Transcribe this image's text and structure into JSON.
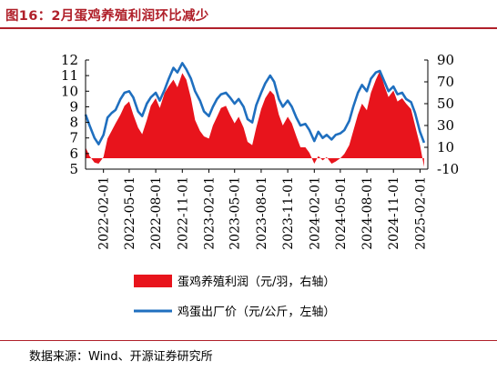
{
  "figure": {
    "title": "图16：2月蛋鸡养殖利润环比减少",
    "source": "数据来源：Wind、开源证券研究所"
  },
  "colors": {
    "title": "#b0202a",
    "profit_fill": "#e8141c",
    "price_line": "#1f6fbf"
  },
  "chart_data": {
    "type": "line",
    "x_type": "date",
    "x_range": [
      "2021-12-01",
      "2025-02-28"
    ],
    "x_ticks": [
      "2022-02-01",
      "2022-05-01",
      "2022-08-01",
      "2022-11-01",
      "2023-02-01",
      "2023-05-01",
      "2023-08-01",
      "2023-11-01",
      "2024-02-01",
      "2024-05-01",
      "2024-08-01",
      "2024-11-01",
      "2025-02-01"
    ],
    "left_axis": {
      "range": [
        5,
        12
      ],
      "ticks": [
        5,
        6,
        7,
        8,
        9,
        10,
        11,
        12
      ]
    },
    "right_axis": {
      "range": [
        -10,
        90
      ],
      "ticks": [
        -10,
        10,
        30,
        50,
        70,
        90
      ]
    },
    "grid": false,
    "legend_position": "bottom",
    "series": [
      {
        "name": "蛋鸡养殖利润（元/羽，右轴）",
        "type": "area",
        "axis": "right",
        "points": [
          [
            "2021-12-01",
            10
          ],
          [
            "2021-12-15",
            2
          ],
          [
            "2022-01-01",
            -4
          ],
          [
            "2022-01-15",
            -5
          ],
          [
            "2022-02-01",
            1
          ],
          [
            "2022-02-15",
            18
          ],
          [
            "2022-03-01",
            25
          ],
          [
            "2022-03-15",
            32
          ],
          [
            "2022-04-01",
            40
          ],
          [
            "2022-04-15",
            48
          ],
          [
            "2022-05-01",
            52
          ],
          [
            "2022-05-15",
            40
          ],
          [
            "2022-06-01",
            28
          ],
          [
            "2022-06-15",
            22
          ],
          [
            "2022-07-01",
            35
          ],
          [
            "2022-07-15",
            48
          ],
          [
            "2022-08-01",
            55
          ],
          [
            "2022-08-15",
            46
          ],
          [
            "2022-09-01",
            60
          ],
          [
            "2022-09-15",
            66
          ],
          [
            "2022-10-01",
            72
          ],
          [
            "2022-10-15",
            65
          ],
          [
            "2022-11-01",
            78
          ],
          [
            "2022-11-15",
            72
          ],
          [
            "2022-12-01",
            55
          ],
          [
            "2022-12-15",
            35
          ],
          [
            "2023-01-01",
            25
          ],
          [
            "2023-01-15",
            20
          ],
          [
            "2023-02-01",
            18
          ],
          [
            "2023-02-15",
            30
          ],
          [
            "2023-03-01",
            38
          ],
          [
            "2023-03-15",
            46
          ],
          [
            "2023-04-01",
            48
          ],
          [
            "2023-04-15",
            40
          ],
          [
            "2023-05-01",
            32
          ],
          [
            "2023-05-15",
            38
          ],
          [
            "2023-06-01",
            28
          ],
          [
            "2023-06-15",
            15
          ],
          [
            "2023-07-01",
            12
          ],
          [
            "2023-07-15",
            28
          ],
          [
            "2023-08-01",
            45
          ],
          [
            "2023-08-15",
            55
          ],
          [
            "2023-09-01",
            62
          ],
          [
            "2023-09-15",
            58
          ],
          [
            "2023-10-01",
            40
          ],
          [
            "2023-10-15",
            30
          ],
          [
            "2023-11-01",
            38
          ],
          [
            "2023-11-15",
            32
          ],
          [
            "2023-12-01",
            20
          ],
          [
            "2023-12-15",
            10
          ],
          [
            "2024-01-01",
            10
          ],
          [
            "2024-01-15",
            5
          ],
          [
            "2024-02-01",
            -5
          ],
          [
            "2024-02-15",
            2
          ],
          [
            "2024-03-01",
            -2
          ],
          [
            "2024-03-15",
            1
          ],
          [
            "2024-04-01",
            -5
          ],
          [
            "2024-04-15",
            -3
          ],
          [
            "2024-05-01",
            0
          ],
          [
            "2024-05-15",
            4
          ],
          [
            "2024-06-01",
            12
          ],
          [
            "2024-06-15",
            25
          ],
          [
            "2024-07-01",
            40
          ],
          [
            "2024-07-15",
            50
          ],
          [
            "2024-08-01",
            44
          ],
          [
            "2024-08-15",
            60
          ],
          [
            "2024-09-01",
            72
          ],
          [
            "2024-09-15",
            80
          ],
          [
            "2024-10-01",
            66
          ],
          [
            "2024-10-15",
            56
          ],
          [
            "2024-11-01",
            62
          ],
          [
            "2024-11-15",
            52
          ],
          [
            "2024-12-01",
            55
          ],
          [
            "2024-12-15",
            50
          ],
          [
            "2025-01-01",
            45
          ],
          [
            "2025-01-15",
            30
          ],
          [
            "2025-02-01",
            12
          ],
          [
            "2025-02-15",
            -8
          ]
        ]
      },
      {
        "name": "鸡蛋出厂价（元/公斤，左轴）",
        "type": "line",
        "axis": "left",
        "points": [
          [
            "2021-12-01",
            8.5
          ],
          [
            "2021-12-15",
            7.8
          ],
          [
            "2022-01-01",
            7.0
          ],
          [
            "2022-01-15",
            6.6
          ],
          [
            "2022-02-01",
            7.2
          ],
          [
            "2022-02-15",
            8.3
          ],
          [
            "2022-03-01",
            8.6
          ],
          [
            "2022-03-15",
            8.8
          ],
          [
            "2022-04-01",
            9.5
          ],
          [
            "2022-04-15",
            9.9
          ],
          [
            "2022-05-01",
            10.0
          ],
          [
            "2022-05-15",
            9.6
          ],
          [
            "2022-06-01",
            8.7
          ],
          [
            "2022-06-15",
            8.4
          ],
          [
            "2022-07-01",
            9.2
          ],
          [
            "2022-07-15",
            9.6
          ],
          [
            "2022-08-01",
            9.9
          ],
          [
            "2022-08-15",
            9.4
          ],
          [
            "2022-09-01",
            10.1
          ],
          [
            "2022-09-15",
            10.8
          ],
          [
            "2022-10-01",
            11.5
          ],
          [
            "2022-10-15",
            11.2
          ],
          [
            "2022-11-01",
            11.8
          ],
          [
            "2022-11-15",
            11.4
          ],
          [
            "2022-12-01",
            10.8
          ],
          [
            "2022-12-15",
            10.0
          ],
          [
            "2023-01-01",
            9.4
          ],
          [
            "2023-01-15",
            8.7
          ],
          [
            "2023-02-01",
            8.4
          ],
          [
            "2023-02-15",
            9.0
          ],
          [
            "2023-03-01",
            9.5
          ],
          [
            "2023-03-15",
            9.8
          ],
          [
            "2023-04-01",
            9.9
          ],
          [
            "2023-04-15",
            9.6
          ],
          [
            "2023-05-01",
            9.2
          ],
          [
            "2023-05-15",
            9.5
          ],
          [
            "2023-06-01",
            9.0
          ],
          [
            "2023-06-15",
            8.2
          ],
          [
            "2023-07-01",
            8.0
          ],
          [
            "2023-07-15",
            9.1
          ],
          [
            "2023-08-01",
            9.9
          ],
          [
            "2023-08-15",
            10.5
          ],
          [
            "2023-09-01",
            11.0
          ],
          [
            "2023-09-15",
            10.6
          ],
          [
            "2023-10-01",
            9.5
          ],
          [
            "2023-10-15",
            9.0
          ],
          [
            "2023-11-01",
            9.4
          ],
          [
            "2023-11-15",
            9.0
          ],
          [
            "2023-12-01",
            8.3
          ],
          [
            "2023-12-15",
            7.8
          ],
          [
            "2024-01-01",
            7.9
          ],
          [
            "2024-01-15",
            7.5
          ],
          [
            "2024-02-01",
            6.8
          ],
          [
            "2024-02-15",
            7.4
          ],
          [
            "2024-03-01",
            7.0
          ],
          [
            "2024-03-15",
            7.2
          ],
          [
            "2024-04-01",
            6.9
          ],
          [
            "2024-04-15",
            7.2
          ],
          [
            "2024-05-01",
            7.3
          ],
          [
            "2024-05-15",
            7.5
          ],
          [
            "2024-06-01",
            8.1
          ],
          [
            "2024-06-15",
            9.0
          ],
          [
            "2024-07-01",
            9.9
          ],
          [
            "2024-07-15",
            10.4
          ],
          [
            "2024-08-01",
            10.0
          ],
          [
            "2024-08-15",
            10.8
          ],
          [
            "2024-09-01",
            11.2
          ],
          [
            "2024-09-15",
            11.3
          ],
          [
            "2024-10-01",
            10.6
          ],
          [
            "2024-10-15",
            10.0
          ],
          [
            "2024-11-01",
            10.3
          ],
          [
            "2024-11-15",
            9.8
          ],
          [
            "2024-12-01",
            9.9
          ],
          [
            "2024-12-15",
            9.5
          ],
          [
            "2025-01-01",
            9.3
          ],
          [
            "2025-01-15",
            8.6
          ],
          [
            "2025-02-01",
            7.4
          ],
          [
            "2025-02-15",
            6.7
          ]
        ]
      }
    ]
  }
}
